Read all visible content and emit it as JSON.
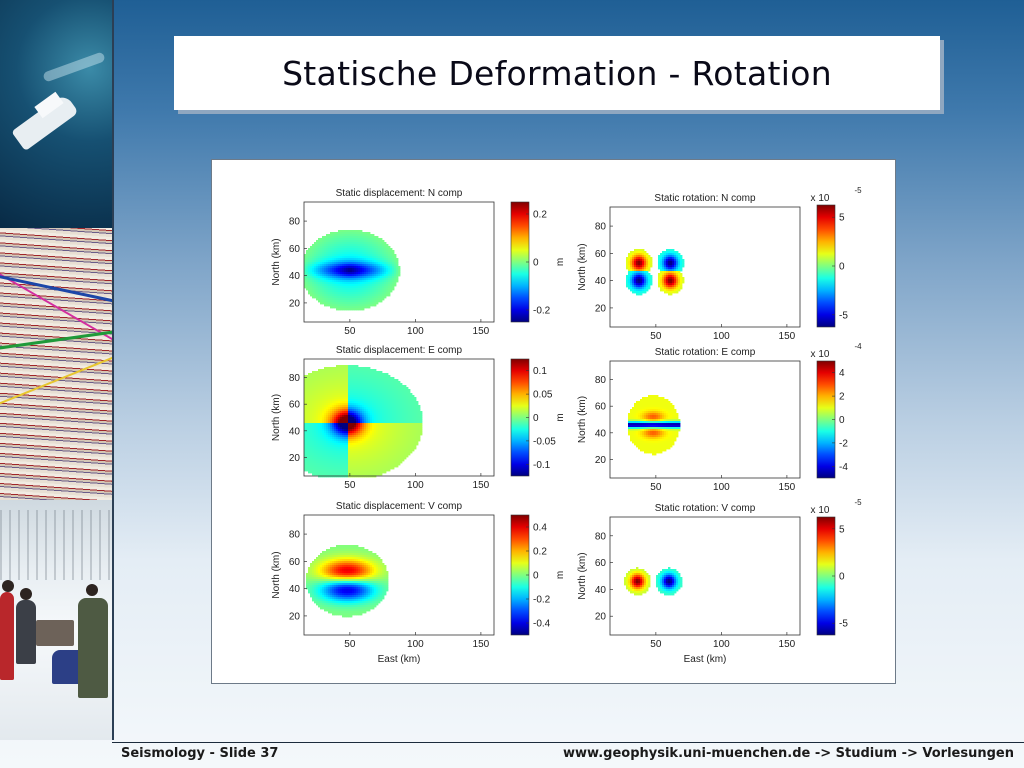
{
  "slide": {
    "title": "Statische Deformation - Rotation",
    "footer_left": "Seismology - Slide 37",
    "footer_right": "www.geophysik.uni-muenchen.de -> Studium -> Vorlesungen"
  },
  "figure": {
    "xlabel": "East (km)",
    "ylabel": "North (km)",
    "x_ticks": [
      50,
      100,
      150
    ],
    "y_ticks": [
      20,
      40,
      60,
      80
    ],
    "colormap": "jet",
    "panels": [
      {
        "id": "disp-n",
        "title": "Static displacement: N comp",
        "unit": "m",
        "exponent": "",
        "cbar_ticks": [
          "0.2",
          "0",
          "-0.2"
        ],
        "pattern": "disp_n"
      },
      {
        "id": "rot-n",
        "title": "Static rotation: N comp",
        "unit": "",
        "exponent_base": "x 10",
        "exponent": "-5",
        "cbar_ticks": [
          "5",
          "0",
          "-5"
        ],
        "pattern": "rot_n"
      },
      {
        "id": "disp-e",
        "title": "Static displacement: E comp",
        "unit": "m",
        "exponent": "",
        "cbar_ticks": [
          "0.1",
          "0.05",
          "0",
          "-0.05",
          "-0.1"
        ],
        "pattern": "disp_e"
      },
      {
        "id": "rot-e",
        "title": "Static rotation: E comp",
        "unit": "",
        "exponent_base": "x 10",
        "exponent": "-4",
        "cbar_ticks": [
          "4",
          "2",
          "0",
          "-2",
          "-4"
        ],
        "pattern": "rot_e"
      },
      {
        "id": "disp-v",
        "title": "Static displacement: V comp",
        "unit": "m",
        "exponent": "",
        "cbar_ticks": [
          "0.4",
          "0.2",
          "0",
          "-0.2",
          "-0.4"
        ],
        "pattern": "disp_v"
      },
      {
        "id": "rot-v",
        "title": "Static rotation: V comp",
        "unit": "",
        "exponent_base": "x 10",
        "exponent": "-5",
        "cbar_ticks": [
          "5",
          "0",
          "-5"
        ],
        "pattern": "rot_v"
      }
    ]
  }
}
